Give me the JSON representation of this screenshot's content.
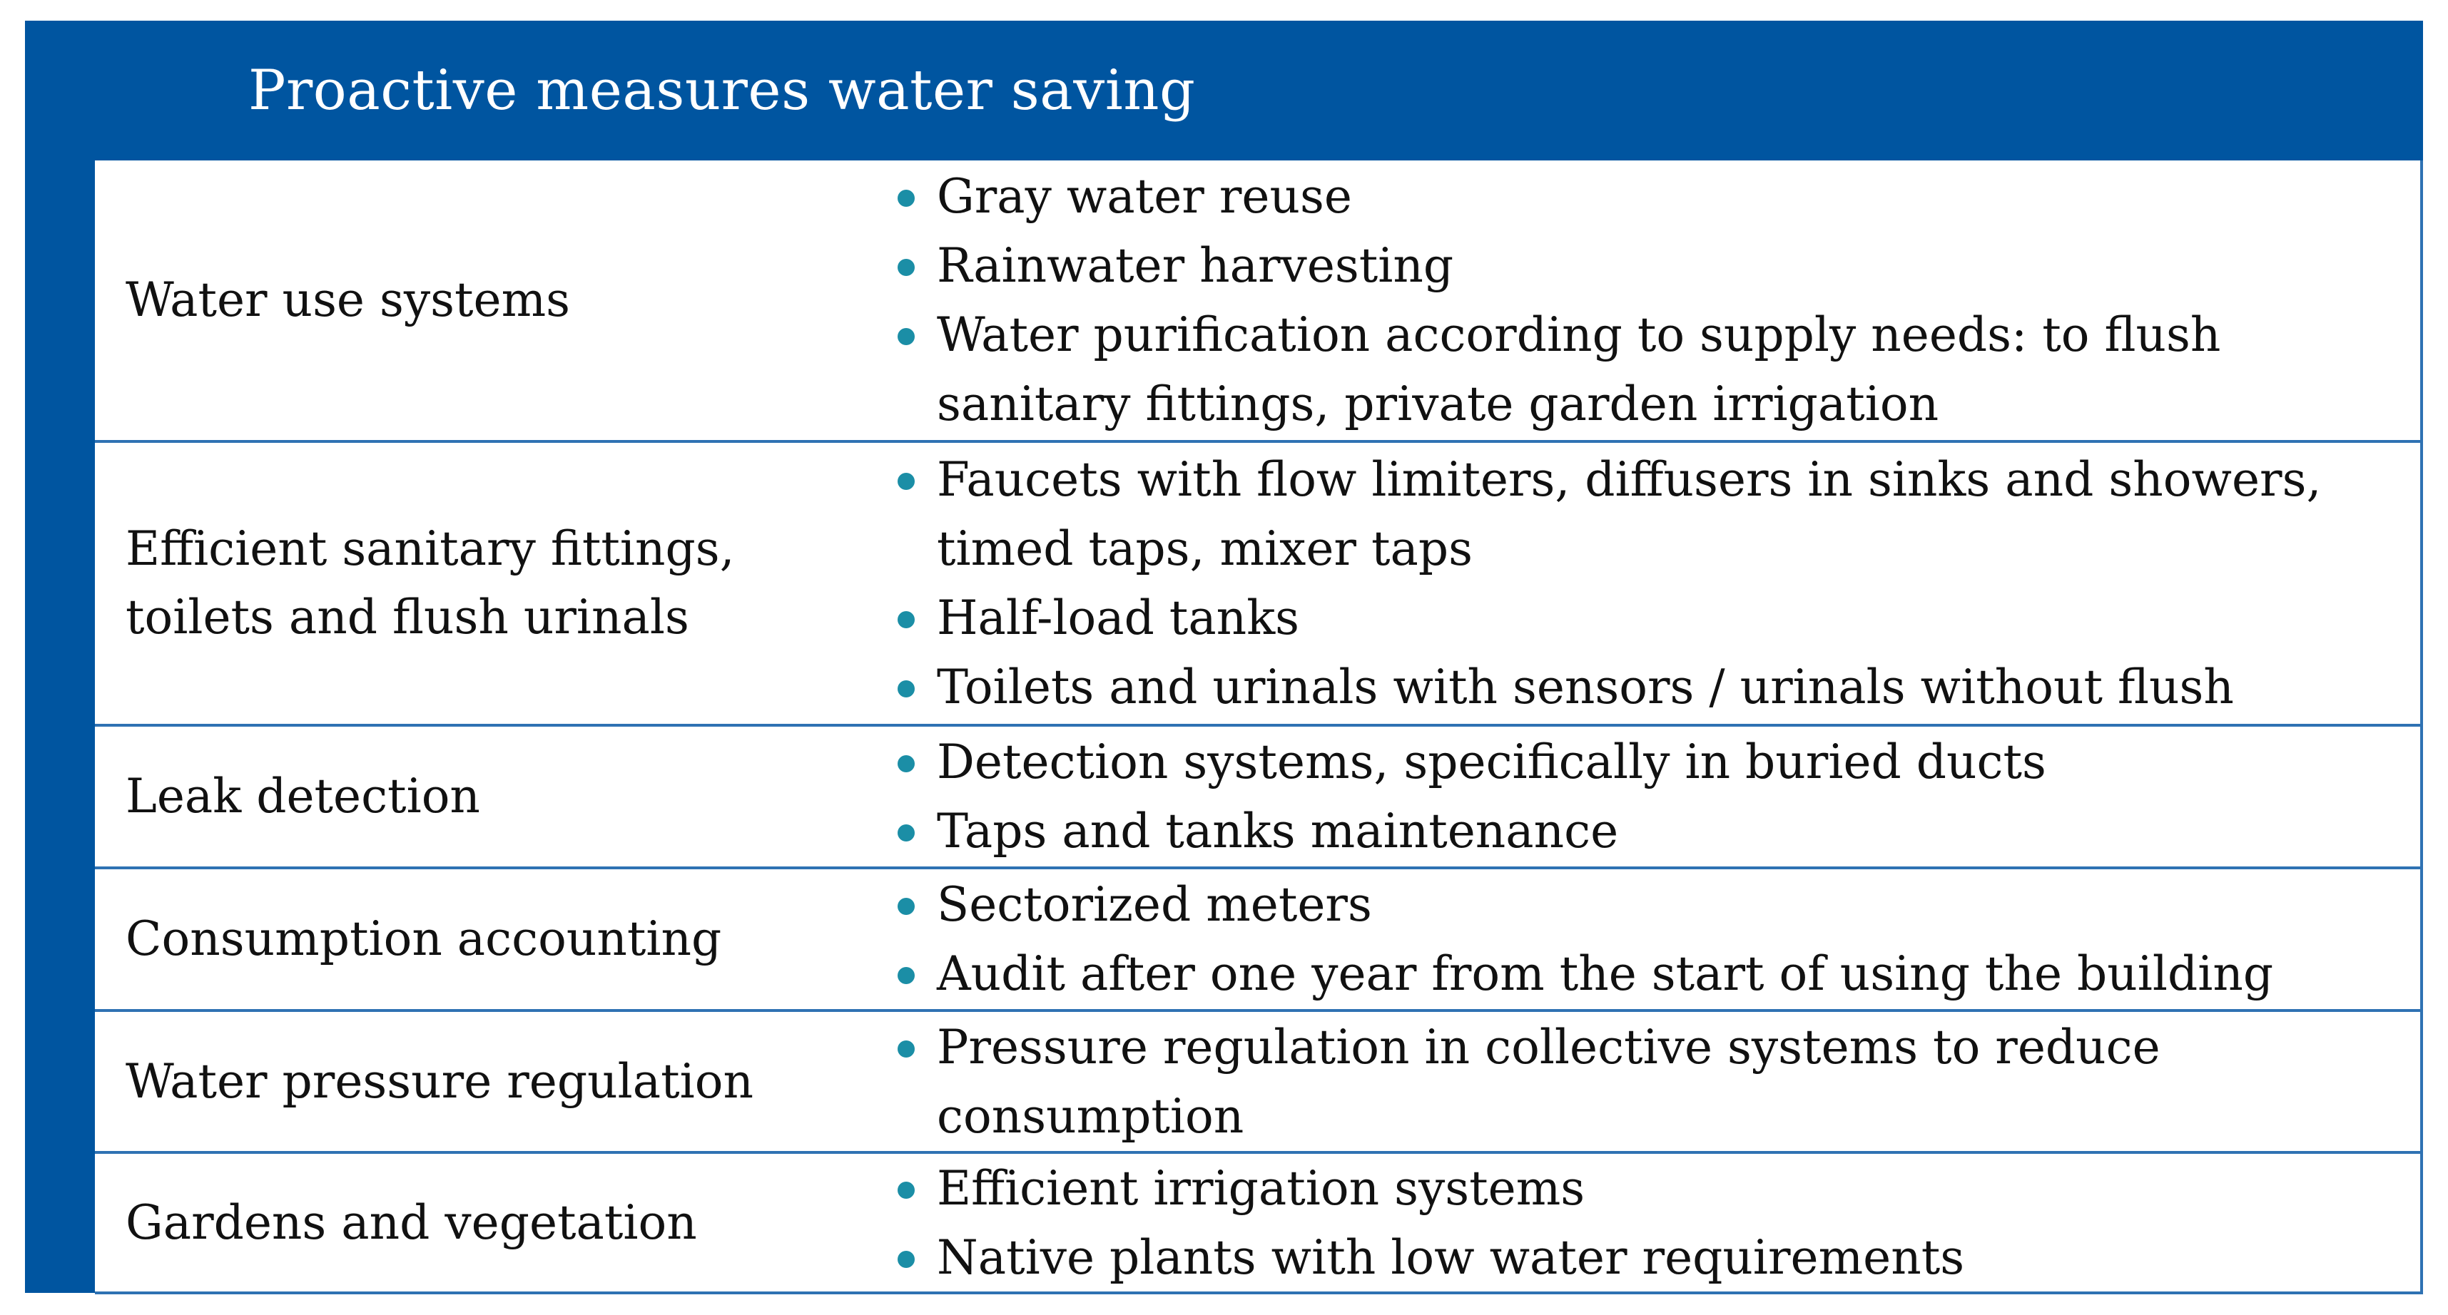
{
  "title": "Proactive measures water saving",
  "colors": {
    "header_bg": "#0055a0",
    "rule": "#2f72b3",
    "bullet": "#1b8ea6"
  },
  "rows": [
    {
      "label": [
        "Water use systems"
      ],
      "items": [
        "Gray water reuse",
        "Rainwater harvesting",
        "Water purification according to supply needs: to flush sanitary fittings, private garden irrigation"
      ]
    },
    {
      "label": [
        "Efficient sanitary fittings,",
        "toilets and flush urinals"
      ],
      "items": [
        "Faucets with flow limiters, diffusers in sinks and showers, timed taps, mixer taps",
        "Half-load tanks",
        "Toilets and urinals with sensors / urinals without flush"
      ]
    },
    {
      "label": [
        "Leak detection"
      ],
      "items": [
        "Detection systems, specifically in buried ducts",
        "Taps and tanks maintenance"
      ]
    },
    {
      "label": [
        "Consumption accounting"
      ],
      "items": [
        "Sectorized meters",
        "Audit after one year from the start of using the building"
      ]
    },
    {
      "label": [
        "Water pressure regulation"
      ],
      "items": [
        "Pressure regulation in collective systems to reduce consumption"
      ]
    },
    {
      "label": [
        "Gardens and vegetation"
      ],
      "items": [
        "Efficient irrigation systems",
        "Native plants with low water requirements"
      ]
    }
  ]
}
